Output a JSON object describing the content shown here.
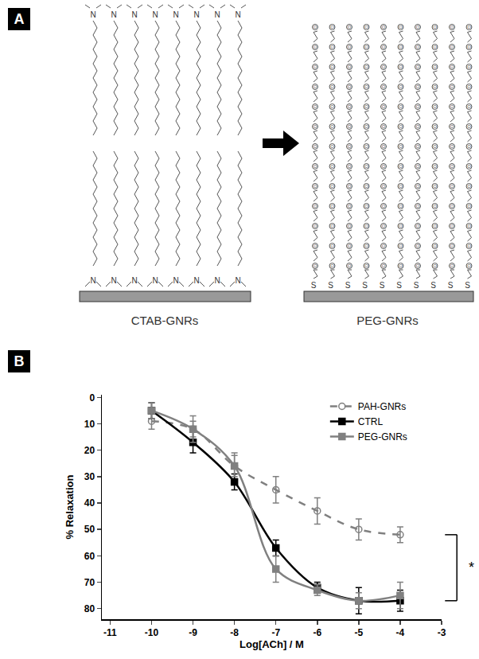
{
  "diagram": {
    "panel_label": "A",
    "left": {
      "label": "CTAB-GNRs",
      "head_atom": "N"
    },
    "right": {
      "label": "PEG-GNRs",
      "anchor_atom": "S",
      "chain_atom": "O"
    }
  },
  "chart_data": {
    "panel_label": "B",
    "type": "line",
    "x_label": "Log[ACh] / M",
    "y_label": "% Relaxation",
    "x": [
      -10,
      -9,
      -8,
      -7,
      -6,
      -5,
      -4
    ],
    "series": [
      {
        "name": "PAH-GNRs",
        "color": "#808080",
        "marker": "circle-open",
        "line_style": "dashed",
        "values": [
          9,
          12,
          26,
          35,
          43,
          50,
          52
        ],
        "errors": [
          3,
          3,
          5,
          5,
          5,
          4,
          3
        ]
      },
      {
        "name": "CTRL",
        "color": "#000000",
        "marker": "square",
        "line_style": "solid",
        "values": [
          5,
          17,
          32,
          57,
          72,
          77,
          77
        ],
        "errors": [
          3,
          4,
          3,
          3,
          2,
          5,
          4
        ]
      },
      {
        "name": "PEG-GNRs",
        "color": "#808080",
        "marker": "square",
        "line_style": "solid",
        "values": [
          5,
          12,
          26,
          65,
          73,
          77,
          75
        ],
        "errors": [
          3,
          5,
          4,
          5,
          2,
          3,
          5
        ]
      }
    ],
    "xlim": [
      -11.2,
      -3
    ],
    "xticks": [
      -11,
      -10,
      -9,
      -8,
      -7,
      -6,
      -5,
      -4,
      -3
    ],
    "ylim": [
      84,
      -1
    ],
    "yticks": [
      0,
      10,
      20,
      30,
      40,
      50,
      60,
      70,
      80
    ],
    "grid": false,
    "legend": "top right",
    "annotations": [
      {
        "text": "*",
        "between": [
          "PAH-GNRs",
          "CTRL"
        ]
      }
    ]
  }
}
